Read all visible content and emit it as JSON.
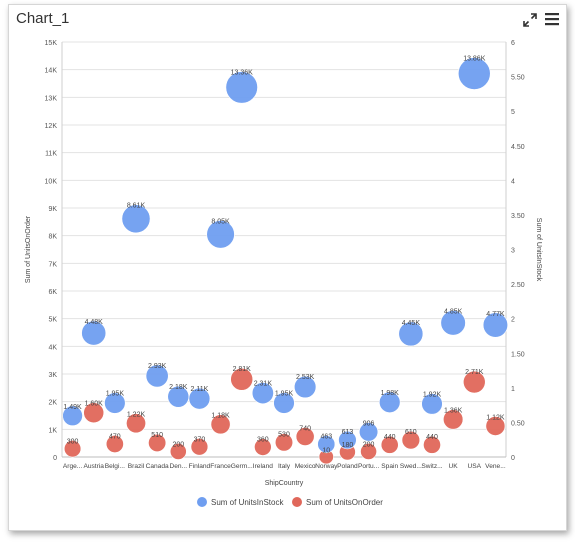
{
  "window": {
    "title": "Chart_1"
  },
  "icons": {
    "expand": "expand-icon",
    "menu": "hamburger-menu-icon"
  },
  "chart_data": {
    "type": "scatter",
    "subtype": "bubble",
    "xlabel": "ShipCountry",
    "ylabel": "Sum of UnitsOnOrder",
    "y2label": "Sum of UnitsInStock",
    "categories": [
      "Arge...",
      "Austria",
      "Belgi...",
      "Brazil",
      "Canada",
      "Den...",
      "Finland",
      "France",
      "Germ...",
      "Ireland",
      "Italy",
      "Mexico",
      "Norway",
      "Poland",
      "Portu...",
      "Spain",
      "Swed...",
      "Switz...",
      "UK",
      "USA",
      "Vene..."
    ],
    "ylim": [
      0,
      15000
    ],
    "yticks": [
      "0",
      "1K",
      "2K",
      "3K",
      "4K",
      "5K",
      "6K",
      "7K",
      "8K",
      "9K",
      "10K",
      "11K",
      "12K",
      "13K",
      "14K",
      "15K"
    ],
    "y2lim": [
      0,
      6
    ],
    "y2ticks": [
      "0",
      "0.50",
      "1",
      "1.50",
      "2",
      "2.50",
      "3",
      "3.50",
      "4",
      "4.50",
      "5",
      "5.50",
      "6"
    ],
    "grid": true,
    "legend_position": "bottom",
    "series": [
      {
        "name": "Sum of UnitsInStock",
        "color": "#6f9ef0",
        "values": [
          1490,
          4480,
          1950,
          8610,
          2930,
          2180,
          2110,
          8050,
          13360,
          2310,
          1950,
          2530,
          463,
          613,
          906,
          1980,
          4450,
          1920,
          4850,
          13860,
          4770
        ],
        "labels": [
          "1.49K",
          "4.48K",
          "1.95K",
          "8.61K",
          "2.93K",
          "2.18K",
          "2.11K",
          "8.05K",
          "13.36K",
          "2.31K",
          "1.95K",
          "2.53K",
          "463",
          "613",
          "906",
          "1.98K",
          "4.45K",
          "1.92K",
          "4.85K",
          "13.86K",
          "4.77K"
        ]
      },
      {
        "name": "Sum of UnitsOnOrder",
        "color": "#e0675a",
        "values": [
          300,
          1600,
          470,
          1220,
          510,
          200,
          370,
          1180,
          2810,
          360,
          530,
          740,
          10,
          180,
          200,
          440,
          610,
          440,
          1360,
          2710,
          1120
        ],
        "labels": [
          "300",
          "1.60K",
          "470",
          "1.22K",
          "510",
          "200",
          "370",
          "1.18K",
          "2.81K",
          "360",
          "530",
          "740",
          "10",
          "180",
          "200",
          "440",
          "610",
          "440",
          "1.36K",
          "2.71K",
          "1.12K"
        ]
      }
    ]
  }
}
